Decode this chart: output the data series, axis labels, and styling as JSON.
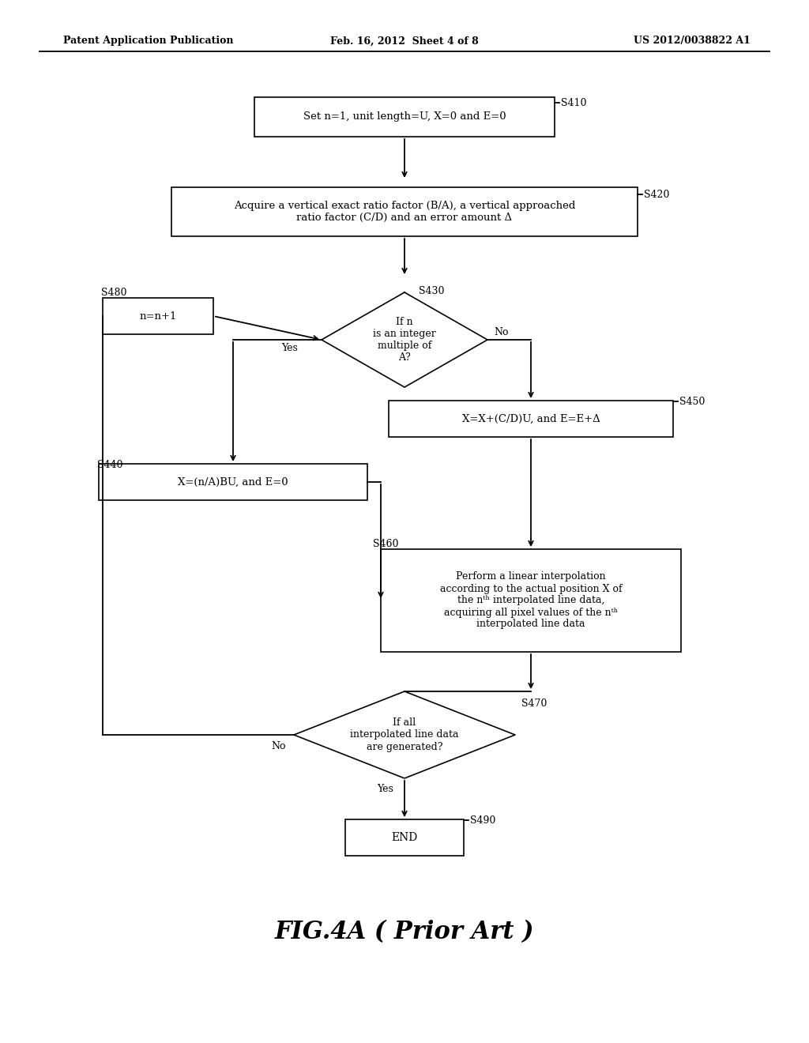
{
  "bg_color": "#ffffff",
  "header_left": "Patent Application Publication",
  "header_mid": "Feb. 16, 2012  Sheet 4 of 8",
  "header_right": "US 2012/0038822 A1",
  "caption": "FIG.4A ( Prior Art )"
}
